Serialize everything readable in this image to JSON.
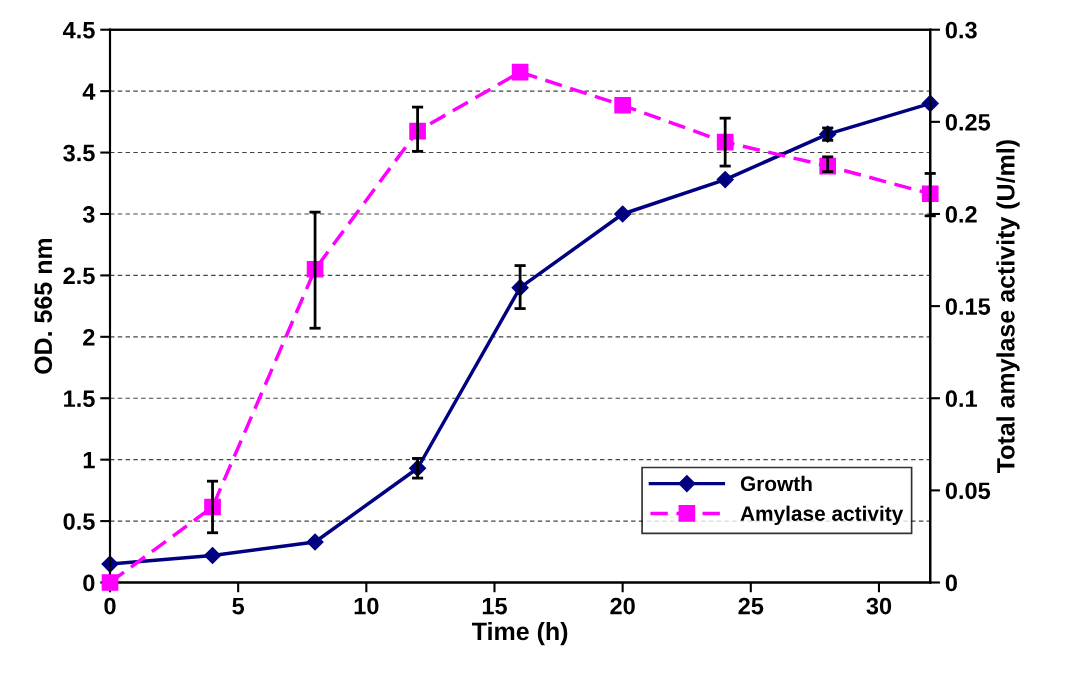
{
  "chart_data": {
    "type": "line",
    "xlabel": "Time (h)",
    "ylabel": "OD. 565 nm",
    "y2label": "Total amylase activity (U/ml)",
    "xlim": [
      0,
      32
    ],
    "xticks": [
      0,
      5,
      10,
      15,
      20,
      25,
      30
    ],
    "ylim": [
      0,
      4.5
    ],
    "yticks": [
      0,
      0.5,
      1,
      1.5,
      2,
      2.5,
      3,
      3.5,
      4,
      4.5
    ],
    "y2lim": [
      0,
      0.3
    ],
    "y2ticks": [
      0,
      0.05,
      0.1,
      0.15,
      0.2,
      0.25,
      0.3
    ],
    "grid": "y",
    "legend": "bottom right",
    "series": [
      {
        "name": "Growth",
        "color": "#000080",
        "marker": "diamond",
        "line_style": "solid",
        "x": [
          0,
          4,
          8,
          12,
          16,
          20,
          24,
          28,
          32
        ],
        "values": [
          0.15,
          0.22,
          0.33,
          0.93,
          2.4,
          3.0,
          3.28,
          3.65,
          3.9
        ],
        "errors": [
          null,
          null,
          null,
          [
            0.85,
            1.01
          ],
          [
            2.23,
            2.58
          ],
          null,
          null,
          [
            3.6,
            3.7
          ],
          null
        ]
      },
      {
        "name": "Amylase activity",
        "color": "#ff00ff",
        "marker": "square",
        "line_style": "dashed",
        "axis": "y2",
        "x": [
          0,
          4,
          8,
          12,
          16,
          20,
          24,
          28,
          32
        ],
        "values": [
          0,
          0.041,
          0.17,
          0.245,
          0.277,
          0.259,
          0.239,
          0.226,
          0.211
        ],
        "errors": [
          null,
          [
            0.027,
            0.055
          ],
          [
            0.138,
            0.201
          ],
          [
            0.234,
            0.258
          ],
          null,
          null,
          [
            0.226,
            0.252
          ],
          [
            0.223,
            0.231
          ],
          [
            0.199,
            0.222
          ]
        ]
      }
    ]
  }
}
